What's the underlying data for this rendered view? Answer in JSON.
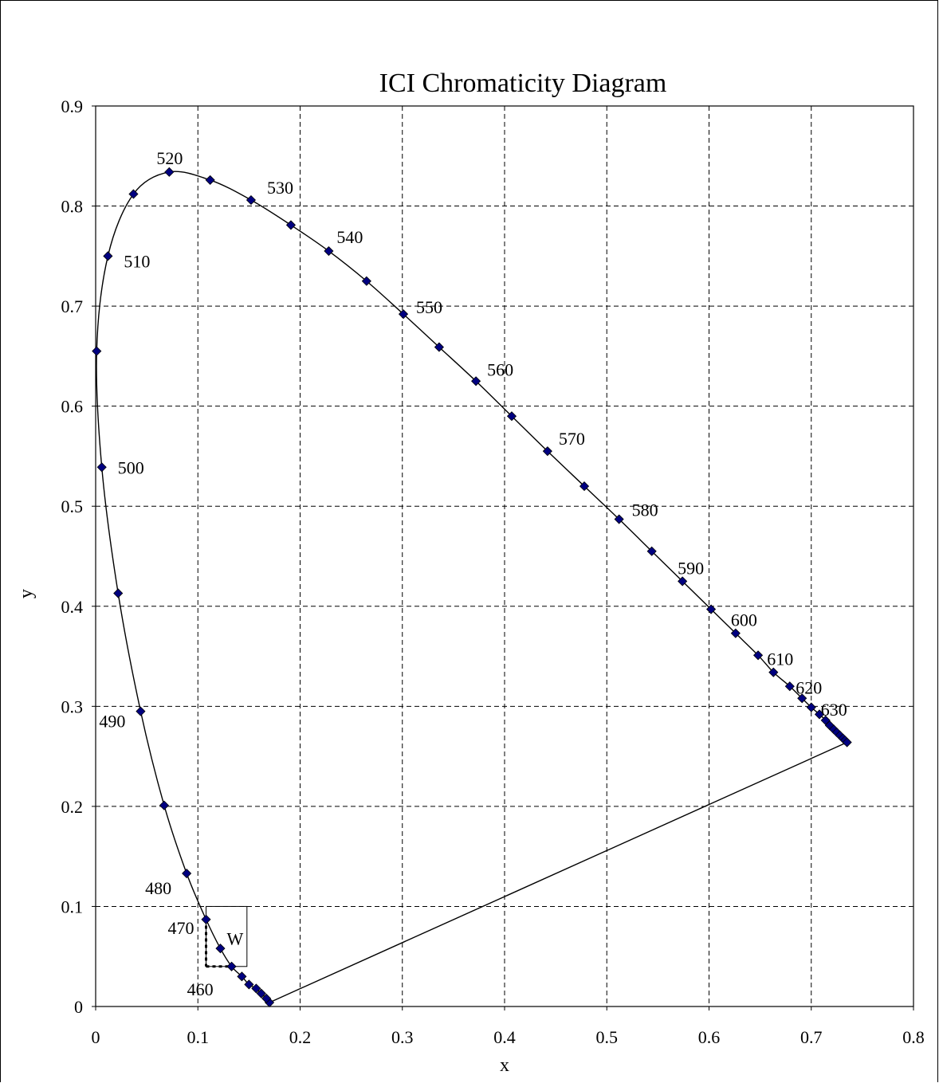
{
  "chart_data": {
    "type": "scatter",
    "title": "ICI Chromaticity Diagram",
    "xlabel": "x",
    "ylabel": "y",
    "xlim": [
      0,
      0.8
    ],
    "ylim": [
      0,
      0.9
    ],
    "x_ticks": [
      "0",
      "0.1",
      "0.2",
      "0.3",
      "0.4",
      "0.5",
      "0.6",
      "0.7",
      "0.8"
    ],
    "y_ticks": [
      "0",
      "0.1",
      "0.2",
      "0.3",
      "0.4",
      "0.5",
      "0.6",
      "0.7",
      "0.8",
      "0.9"
    ],
    "grid": true,
    "legend": "none",
    "colors": {
      "marker": "#000080",
      "line": "#000000",
      "grid": "#000000"
    },
    "series": [
      {
        "points": [
          [
            0.17,
            0.004
          ],
          [
            0.167,
            0.008
          ],
          [
            0.162,
            0.013
          ],
          [
            0.157,
            0.018
          ],
          [
            0.15,
            0.022
          ],
          [
            0.143,
            0.03
          ],
          [
            0.133,
            0.04
          ],
          [
            0.122,
            0.058
          ],
          [
            0.108,
            0.087
          ],
          [
            0.089,
            0.133
          ],
          [
            0.067,
            0.201
          ],
          [
            0.044,
            0.295
          ],
          [
            0.022,
            0.413
          ],
          [
            0.006,
            0.539
          ],
          [
            0.001,
            0.655
          ],
          [
            0.012,
            0.75
          ],
          [
            0.037,
            0.812
          ],
          [
            0.072,
            0.834
          ],
          [
            0.112,
            0.826
          ],
          [
            0.152,
            0.806
          ],
          [
            0.191,
            0.781
          ],
          [
            0.228,
            0.755
          ],
          [
            0.265,
            0.725
          ],
          [
            0.301,
            0.692
          ],
          [
            0.336,
            0.659
          ],
          [
            0.372,
            0.625
          ],
          [
            0.407,
            0.59
          ],
          [
            0.442,
            0.555
          ],
          [
            0.478,
            0.52
          ],
          [
            0.512,
            0.487
          ],
          [
            0.544,
            0.455
          ],
          [
            0.574,
            0.425
          ],
          [
            0.602,
            0.397
          ],
          [
            0.626,
            0.373
          ],
          [
            0.648,
            0.351
          ],
          [
            0.663,
            0.334
          ],
          [
            0.679,
            0.32
          ],
          [
            0.691,
            0.308
          ],
          [
            0.7,
            0.299
          ],
          [
            0.708,
            0.292
          ],
          [
            0.714,
            0.286
          ],
          [
            0.718,
            0.281
          ],
          [
            0.722,
            0.277
          ],
          [
            0.725,
            0.274
          ],
          [
            0.728,
            0.271
          ],
          [
            0.731,
            0.268
          ],
          [
            0.733,
            0.266
          ],
          [
            0.735,
            0.264
          ]
        ]
      }
    ],
    "purple_line": [
      [
        0.17,
        0.004
      ],
      [
        0.735,
        0.264
      ]
    ],
    "wavelength_labels": [
      {
        "text": "460",
        "x": 0.133,
        "y": 0.04
      },
      {
        "text": "470",
        "x": 0.108,
        "y": 0.087
      },
      {
        "text": "480",
        "x": 0.089,
        "y": 0.133
      },
      {
        "text": "490",
        "x": 0.044,
        "y": 0.295
      },
      {
        "text": "500",
        "x": 0.006,
        "y": 0.539
      },
      {
        "text": "510",
        "x": 0.012,
        "y": 0.75
      },
      {
        "text": "520",
        "x": 0.072,
        "y": 0.834
      },
      {
        "text": "530",
        "x": 0.152,
        "y": 0.806
      },
      {
        "text": "540",
        "x": 0.228,
        "y": 0.755
      },
      {
        "text": "550",
        "x": 0.301,
        "y": 0.692
      },
      {
        "text": "560",
        "x": 0.372,
        "y": 0.625
      },
      {
        "text": "570",
        "x": 0.442,
        "y": 0.555
      },
      {
        "text": "580",
        "x": 0.512,
        "y": 0.487
      },
      {
        "text": "590",
        "x": 0.574,
        "y": 0.425
      },
      {
        "text": "600",
        "x": 0.626,
        "y": 0.373
      },
      {
        "text": "610",
        "x": 0.663,
        "y": 0.334
      },
      {
        "text": "620",
        "x": 0.691,
        "y": 0.308
      },
      {
        "text": "630",
        "x": 0.714,
        "y": 0.286
      }
    ],
    "inset_box": {
      "label": "W",
      "x0": 0.108,
      "x1": 0.148,
      "y0": 0.04,
      "y1": 0.1
    },
    "inset_dotted": {
      "x": 0.108,
      "y": 0.04,
      "x_from": 0.108,
      "x_to": 0.133
    }
  }
}
